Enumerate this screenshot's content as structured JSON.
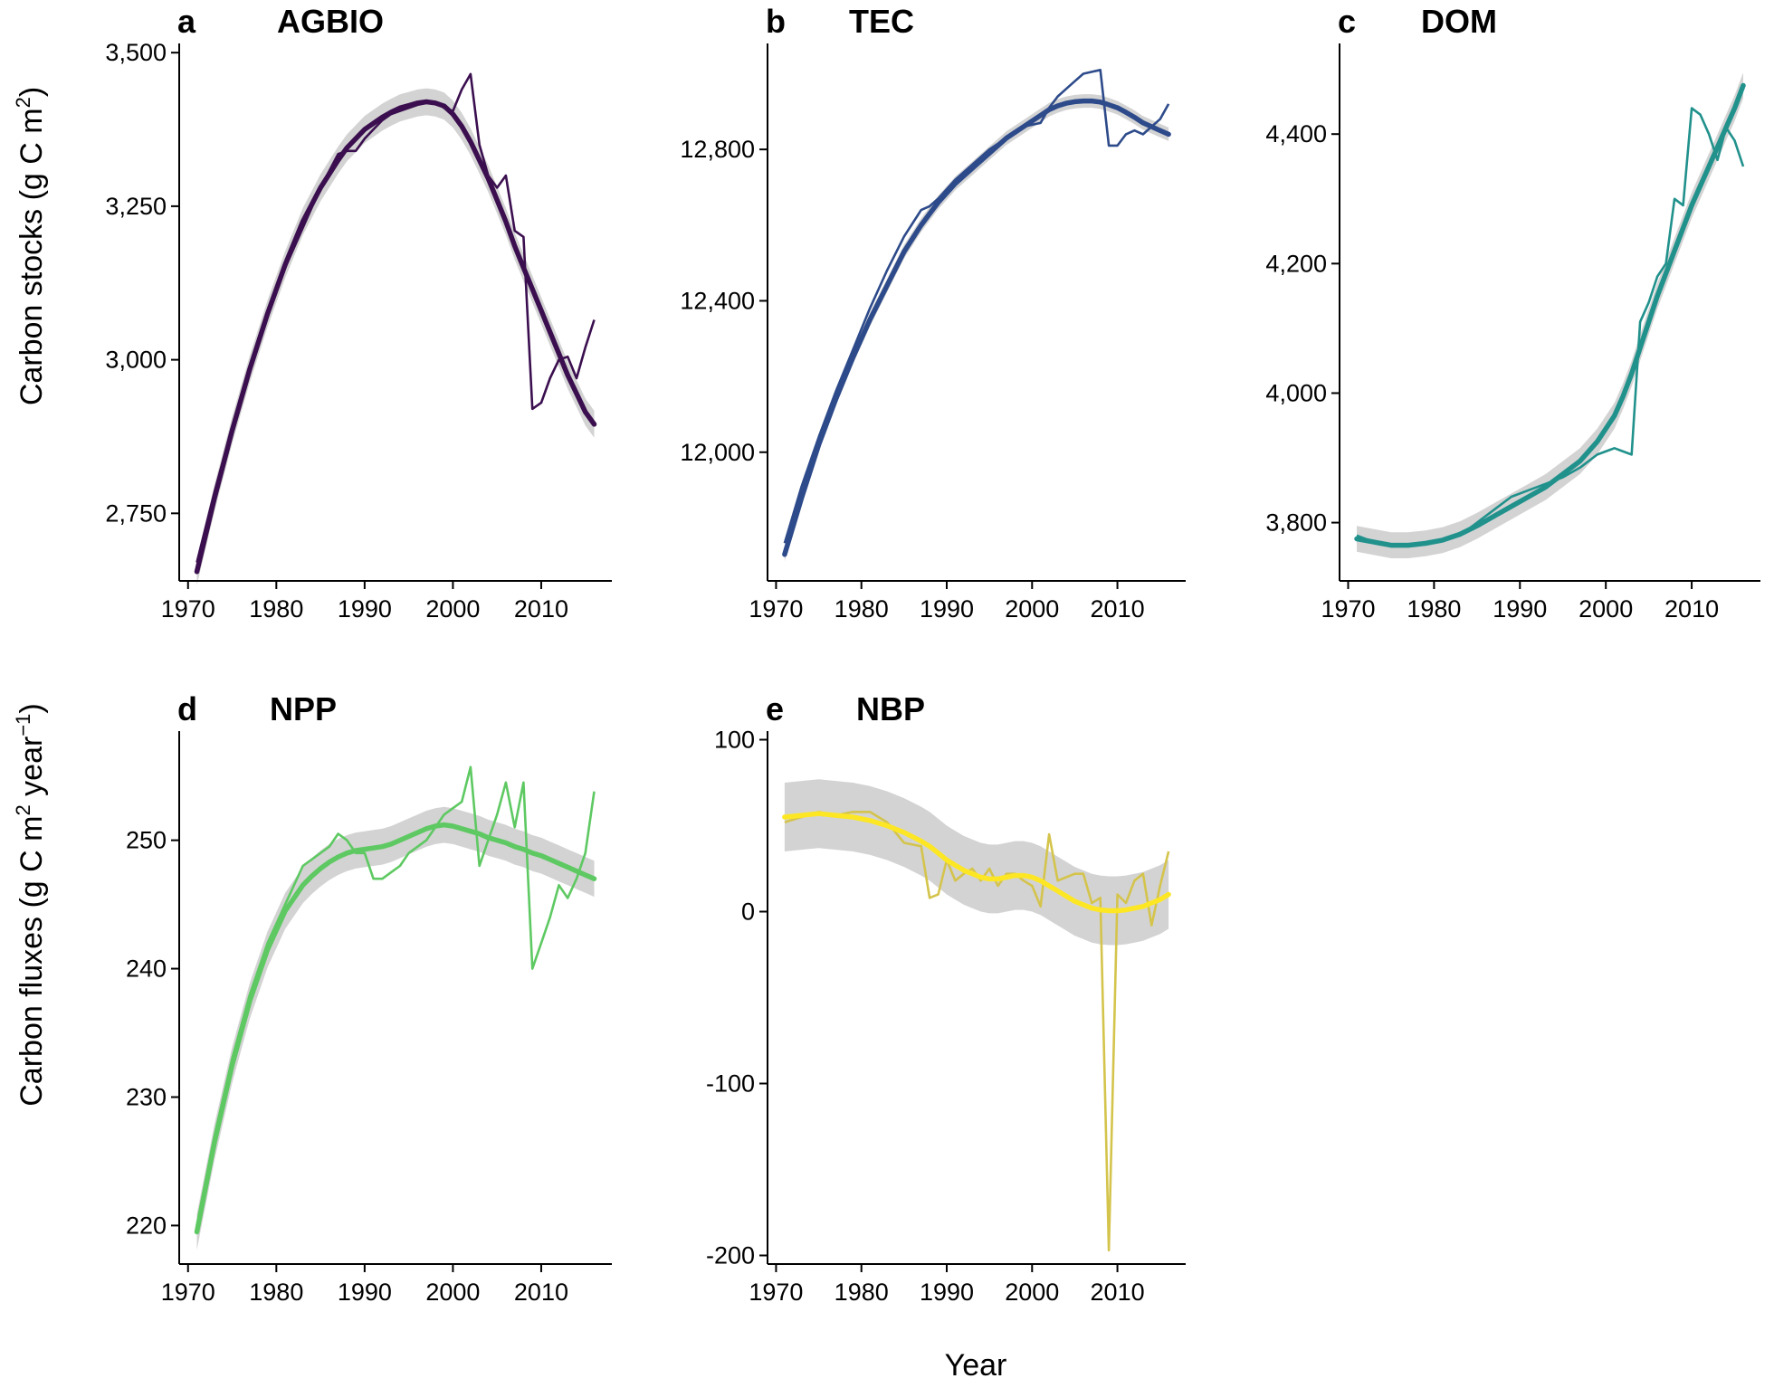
{
  "figure": {
    "ylabel_stocks": "Carbon stocks (g C m",
    "ylabel_stocks_sup": "2",
    "ylabel_stocks_end": ")",
    "ylabel_fluxes": "Carbon fluxes (g C m",
    "ylabel_fluxes_sup1": "2",
    "ylabel_fluxes_mid": " year",
    "ylabel_fluxes_sup2": "−1",
    "ylabel_fluxes_end": ")",
    "xlabel": "Year",
    "band_color": "#d3d3d3"
  },
  "chart_data": [
    {
      "type": "line",
      "letter": "a",
      "title": "AGBIO",
      "color": "#3b0f4f",
      "xlim": [
        1969,
        2018
      ],
      "ylim": [
        2640,
        3515
      ],
      "xticks": [
        1970,
        1980,
        1990,
        2000,
        2010
      ],
      "xtick_labels": [
        "1970",
        "1980",
        "1990",
        "2000",
        "2010"
      ],
      "yticks": [
        2750,
        3000,
        3250,
        3500
      ],
      "ytick_labels": [
        "2,750",
        "3,000",
        "3,250",
        "3,500"
      ],
      "x": [
        1971,
        1973,
        1975,
        1977,
        1979,
        1981,
        1983,
        1985,
        1987,
        1988,
        1989,
        1990,
        1991,
        1992,
        1993,
        1994,
        1995,
        1996,
        1997,
        1998,
        1999,
        2000,
        2001,
        2002,
        2003,
        2004,
        2005,
        2006,
        2007,
        2008,
        2009,
        2010,
        2011,
        2012,
        2013,
        2014,
        2015,
        2016
      ],
      "values": [
        2670,
        2785,
        2890,
        2985,
        3070,
        3150,
        3215,
        3280,
        3335,
        3340,
        3340,
        3360,
        3375,
        3390,
        3400,
        3405,
        3410,
        3415,
        3418,
        3420,
        3410,
        3405,
        3440,
        3465,
        3350,
        3300,
        3280,
        3300,
        3210,
        3200,
        2920,
        2930,
        2970,
        3000,
        3005,
        2970,
        3020,
        3065
      ],
      "trend": [
        2655,
        2775,
        2885,
        2985,
        3075,
        3155,
        3225,
        3280,
        3325,
        3345,
        3360,
        3375,
        3385,
        3395,
        3403,
        3410,
        3414,
        3418,
        3420,
        3418,
        3413,
        3400,
        3380,
        3355,
        3325,
        3295,
        3260,
        3225,
        3185,
        3150,
        3115,
        3080,
        3045,
        3010,
        2975,
        2945,
        2915,
        2895
      ],
      "band": 22
    },
    {
      "type": "line",
      "letter": "b",
      "title": "TEC",
      "color": "#2d4a8a",
      "xlim": [
        1969,
        2018
      ],
      "ylim": [
        11660,
        13080
      ],
      "xticks": [
        1970,
        1980,
        1990,
        2000,
        2010
      ],
      "xtick_labels": [
        "1970",
        "1980",
        "1990",
        "2000",
        "2010"
      ],
      "yticks": [
        12000,
        12400,
        12800
      ],
      "ytick_labels": [
        "12,000",
        "12,400",
        "12,800"
      ],
      "x": [
        1971,
        1973,
        1975,
        1977,
        1979,
        1981,
        1983,
        1985,
        1987,
        1988,
        1989,
        1991,
        1993,
        1995,
        1997,
        1999,
        2001,
        2002,
        2003,
        2004,
        2005,
        2006,
        2007,
        2008,
        2009,
        2010,
        2011,
        2012,
        2013,
        2014,
        2015,
        2016
      ],
      "values": [
        11760,
        11910,
        12040,
        12160,
        12270,
        12380,
        12480,
        12570,
        12640,
        12650,
        12670,
        12720,
        12760,
        12800,
        12830,
        12860,
        12870,
        12910,
        12940,
        12960,
        12980,
        13000,
        13005,
        13010,
        12810,
        12810,
        12840,
        12850,
        12840,
        12860,
        12880,
        12920
      ],
      "trend": [
        11730,
        11880,
        12020,
        12140,
        12250,
        12350,
        12440,
        12530,
        12600,
        12630,
        12660,
        12710,
        12750,
        12790,
        12830,
        12860,
        12890,
        12905,
        12915,
        12922,
        12926,
        12928,
        12928,
        12925,
        12918,
        12910,
        12898,
        12885,
        12870,
        12860,
        12850,
        12840
      ],
      "band": 18
    },
    {
      "type": "line",
      "letter": "c",
      "title": "DOM",
      "color": "#21918c",
      "xlim": [
        1969,
        2018
      ],
      "ylim": [
        3710,
        4540
      ],
      "xticks": [
        1970,
        1980,
        1990,
        2000,
        2010
      ],
      "xtick_labels": [
        "1970",
        "1980",
        "1990",
        "2000",
        "2010"
      ],
      "yticks": [
        3800,
        4000,
        4200,
        4400
      ],
      "ytick_labels": [
        "3,800",
        "4,000",
        "4,200",
        "4,400"
      ],
      "x": [
        1971,
        1973,
        1975,
        1977,
        1979,
        1981,
        1983,
        1985,
        1987,
        1989,
        1991,
        1993,
        1995,
        1997,
        1999,
        2001,
        2002,
        2003,
        2004,
        2005,
        2006,
        2007,
        2008,
        2009,
        2010,
        2011,
        2012,
        2013,
        2014,
        2015,
        2016
      ],
      "values": [
        3780,
        3770,
        3765,
        3765,
        3768,
        3772,
        3780,
        3800,
        3820,
        3840,
        3850,
        3860,
        3870,
        3885,
        3905,
        3915,
        3910,
        3905,
        4110,
        4140,
        4180,
        4200,
        4300,
        4290,
        4440,
        4430,
        4400,
        4360,
        4410,
        4390,
        4350
      ],
      "trend": [
        3775,
        3770,
        3765,
        3765,
        3768,
        3773,
        3782,
        3795,
        3810,
        3825,
        3840,
        3855,
        3875,
        3895,
        3925,
        3965,
        3995,
        4030,
        4070,
        4110,
        4150,
        4185,
        4220,
        4255,
        4290,
        4320,
        4350,
        4380,
        4410,
        4440,
        4475
      ],
      "band": 20
    },
    {
      "type": "line",
      "letter": "d",
      "title": "NPP",
      "color": "#5ec962",
      "xlim": [
        1969,
        2018
      ],
      "ylim": [
        217,
        258.5
      ],
      "xticks": [
        1970,
        1980,
        1990,
        2000,
        2010
      ],
      "xtick_labels": [
        "1970",
        "1980",
        "1990",
        "2000",
        "2010"
      ],
      "yticks": [
        220,
        230,
        240,
        250
      ],
      "ytick_labels": [
        "220",
        "230",
        "240",
        "250"
      ],
      "x": [
        1971,
        1973,
        1975,
        1977,
        1979,
        1981,
        1983,
        1984,
        1985,
        1986,
        1987,
        1988,
        1989,
        1990,
        1991,
        1992,
        1993,
        1994,
        1995,
        1996,
        1997,
        1998,
        1999,
        2000,
        2001,
        2002,
        2003,
        2004,
        2005,
        2006,
        2007,
        2008,
        2009,
        2010,
        2011,
        2012,
        2013,
        2014,
        2015,
        2016
      ],
      "values": [
        220,
        227,
        233,
        238,
        242,
        245,
        248,
        248.5,
        249,
        249.5,
        250.5,
        250,
        249,
        249,
        247,
        247,
        247.5,
        248,
        249,
        249.5,
        250,
        251,
        252,
        252.5,
        253,
        255.7,
        248,
        250,
        252,
        254.5,
        251,
        254.5,
        240,
        242,
        244,
        246.5,
        245.5,
        247,
        249,
        253.8
      ],
      "trend": [
        219.5,
        226.5,
        232.5,
        237.5,
        241.5,
        244.5,
        246.5,
        247.2,
        247.8,
        248.3,
        248.7,
        249,
        249.2,
        249.3,
        249.4,
        249.5,
        249.7,
        250,
        250.3,
        250.6,
        250.9,
        251.1,
        251.2,
        251.1,
        250.9,
        250.7,
        250.5,
        250.2,
        250,
        249.8,
        249.5,
        249.3,
        249,
        248.8,
        248.5,
        248.2,
        247.9,
        247.6,
        247.3,
        247
      ],
      "band": 1.4
    },
    {
      "type": "line",
      "letter": "e",
      "title": "NBP",
      "color": "#fde725",
      "raw_color": "#d4c44c",
      "xlim": [
        1969,
        2018
      ],
      "ylim": [
        -205,
        105
      ],
      "xticks": [
        1970,
        1980,
        1990,
        2000,
        2010
      ],
      "xtick_labels": [
        "1970",
        "1980",
        "1990",
        "2000",
        "2010"
      ],
      "yticks": [
        -200,
        -100,
        0,
        100
      ],
      "ytick_labels": [
        "-200",
        "-100",
        "0",
        "100"
      ],
      "x": [
        1971,
        1973,
        1975,
        1977,
        1979,
        1981,
        1983,
        1985,
        1987,
        1988,
        1989,
        1990,
        1991,
        1992,
        1993,
        1994,
        1995,
        1996,
        1997,
        1998,
        1999,
        2000,
        2001,
        2002,
        2003,
        2004,
        2005,
        2006,
        2007,
        2008,
        2009,
        2010,
        2011,
        2012,
        2013,
        2014,
        2015,
        2016
      ],
      "values": [
        52,
        55,
        58,
        56,
        58,
        58,
        52,
        40,
        38,
        8,
        10,
        30,
        18,
        22,
        25,
        18,
        25,
        15,
        22,
        22,
        18,
        15,
        3,
        45,
        18,
        20,
        22,
        22,
        5,
        8,
        -197,
        10,
        5,
        18,
        22,
        -8,
        15,
        35
      ],
      "trend": [
        55,
        56,
        57,
        56,
        55,
        53,
        50,
        46,
        41,
        38,
        34,
        30,
        27,
        24,
        22,
        20,
        19,
        19,
        20,
        21,
        21,
        20,
        18,
        15,
        12,
        9,
        6,
        4,
        2,
        1,
        0.5,
        0.5,
        1,
        2,
        3,
        5,
        7,
        10
      ],
      "band": 20
    }
  ]
}
